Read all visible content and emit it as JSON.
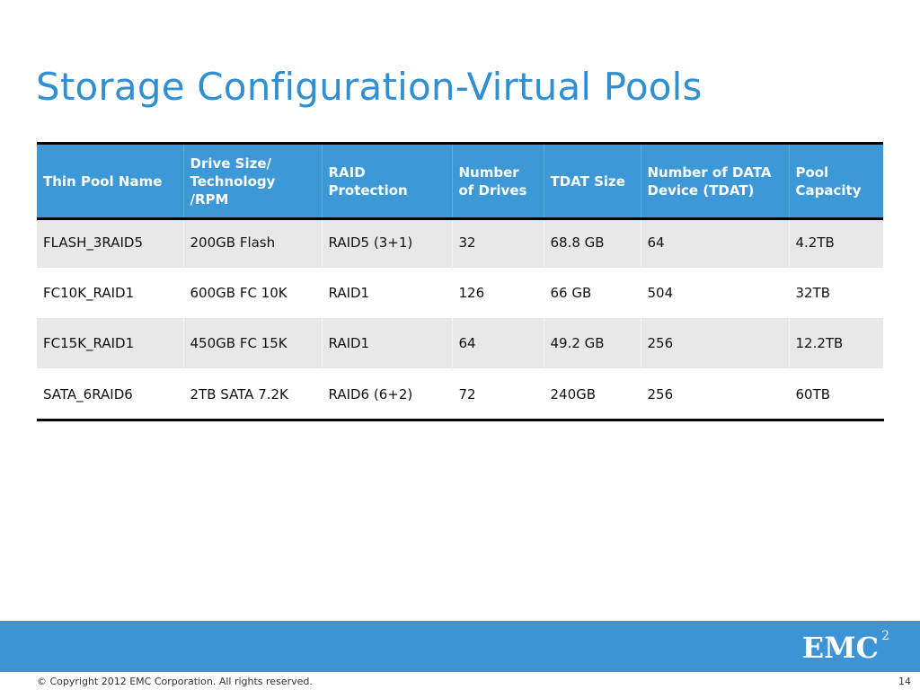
{
  "slide": {
    "title": "Storage Configuration-Virtual Pools"
  },
  "table": {
    "headers": [
      "Thin Pool Name",
      "Drive Size/ Technology /RPM",
      "RAID Protection",
      "Number of Drives",
      "TDAT Size",
      "Number of DATA Device (TDAT)",
      "Pool Capacity"
    ],
    "rows": [
      [
        "FLASH_3RAID5",
        "200GB Flash",
        "RAID5 (3+1)",
        "32",
        "68.8 GB",
        "64",
        "4.2TB"
      ],
      [
        "FC10K_RAID1",
        "600GB FC 10K",
        "RAID1",
        "126",
        "66 GB",
        "504",
        "32TB"
      ],
      [
        "FC15K_RAID1",
        "450GB FC 15K",
        "RAID1",
        "64",
        "49.2 GB",
        "256",
        "12.2TB"
      ],
      [
        "SATA_6RAID6",
        "2TB SATA 7.2K",
        "RAID6 (6+2)",
        "72",
        "240GB",
        "256",
        "60TB"
      ]
    ]
  },
  "footer": {
    "logo_text": "EMC",
    "logo_superscript": "2",
    "copyright": "© Copyright 2012 EMC Corporation. All rights reserved.",
    "page_number": "14"
  },
  "colors": {
    "title": "#2f8fd0",
    "header_background": "#3d98d8",
    "footer_band": "#3d93d3",
    "row_shaded": "#e8e8e8"
  }
}
